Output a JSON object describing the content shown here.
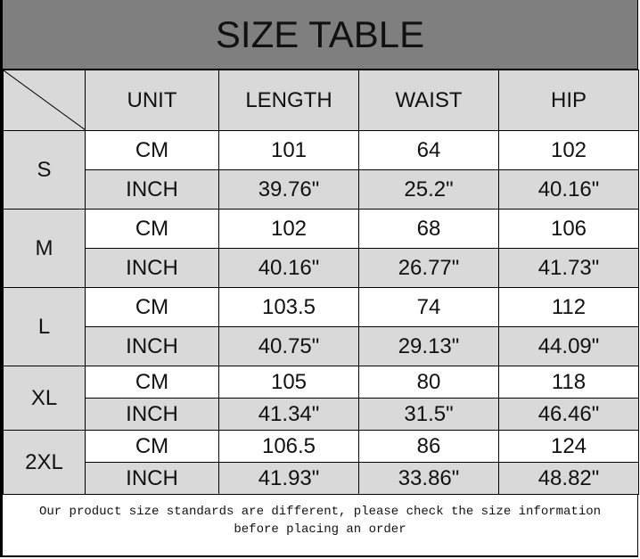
{
  "title": "SIZE TABLE",
  "headers": [
    "UNIT",
    "LENGTH",
    "WAIST",
    "HIP"
  ],
  "sizes": [
    {
      "size": "S",
      "rows": [
        [
          "CM",
          "101",
          "64",
          "102"
        ],
        [
          "INCH",
          "39.76\"",
          "25.2\"",
          "40.16\""
        ]
      ]
    },
    {
      "size": "M",
      "rows": [
        [
          "CM",
          "102",
          "68",
          "106"
        ],
        [
          "INCH",
          "40.16\"",
          "26.77\"",
          "41.73\""
        ]
      ]
    },
    {
      "size": "L",
      "rows": [
        [
          "CM",
          "103.5",
          "74",
          "112"
        ],
        [
          "INCH",
          "40.75\"",
          "29.13\"",
          "44.09\""
        ]
      ]
    },
    {
      "size": "XL",
      "rows": [
        [
          "CM",
          "105",
          "80",
          "118"
        ],
        [
          "INCH",
          "41.34\"",
          "31.5\"",
          "46.46\""
        ]
      ]
    },
    {
      "size": "2XL",
      "rows": [
        [
          "CM",
          "106.5",
          "86",
          "124"
        ],
        [
          "INCH",
          "41.93\"",
          "33.86\"",
          "48.82\""
        ]
      ]
    }
  ],
  "footer": {
    "line1": "Our product size standards are different, please check the size information",
    "line2": "before placing an order"
  }
}
